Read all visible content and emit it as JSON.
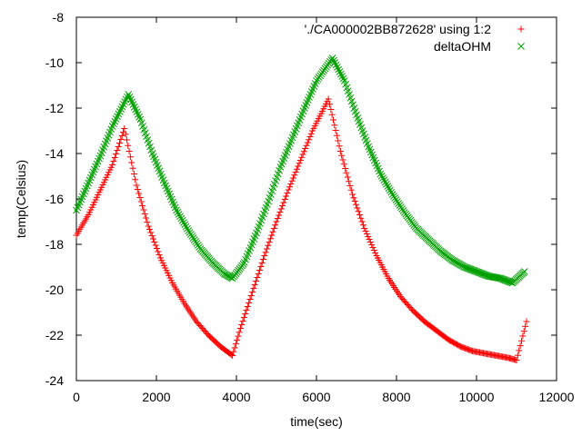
{
  "chart_data": {
    "type": "scatter",
    "xlabel": "time(sec)",
    "ylabel": "temp(Celsius)",
    "xlim": [
      0,
      12000
    ],
    "ylim": [
      -24,
      -8
    ],
    "xticks": [
      0,
      2000,
      4000,
      6000,
      8000,
      10000,
      12000
    ],
    "xtick_labels": [
      "0",
      "2000",
      "4000",
      "6000",
      "8000",
      "10000",
      "12000"
    ],
    "yticks": [
      -24,
      -22,
      -20,
      -18,
      -16,
      -14,
      -12,
      -10,
      -8
    ],
    "ytick_labels": [
      "-24",
      "-22",
      "-20",
      "-18",
      "-16",
      "-14",
      "-12",
      "-10",
      "-8"
    ],
    "grid": false,
    "legend_position": "top-right",
    "series": [
      {
        "name": "'./CA000002BB872628' using 1:2",
        "marker": "plus",
        "color": "#ff0000",
        "points": [
          [
            0,
            -17.6
          ],
          [
            300,
            -16.7
          ],
          [
            600,
            -15.6
          ],
          [
            900,
            -14.5
          ],
          [
            1200,
            -12.9
          ],
          [
            1500,
            -15.4
          ],
          [
            1800,
            -17.2
          ],
          [
            2100,
            -18.6
          ],
          [
            2400,
            -19.7
          ],
          [
            2700,
            -20.6
          ],
          [
            3000,
            -21.4
          ],
          [
            3300,
            -22.0
          ],
          [
            3600,
            -22.5
          ],
          [
            3900,
            -22.9
          ],
          [
            4100,
            -21.7
          ],
          [
            4400,
            -20.1
          ],
          [
            4700,
            -18.5
          ],
          [
            5000,
            -17.0
          ],
          [
            5300,
            -15.6
          ],
          [
            5600,
            -14.3
          ],
          [
            5900,
            -13.0
          ],
          [
            6300,
            -11.6
          ],
          [
            6600,
            -13.9
          ],
          [
            6900,
            -15.8
          ],
          [
            7200,
            -17.3
          ],
          [
            7500,
            -18.5
          ],
          [
            7800,
            -19.5
          ],
          [
            8100,
            -20.3
          ],
          [
            8400,
            -20.9
          ],
          [
            8700,
            -21.4
          ],
          [
            9000,
            -21.8
          ],
          [
            9300,
            -22.2
          ],
          [
            9600,
            -22.5
          ],
          [
            9900,
            -22.7
          ],
          [
            10200,
            -22.8
          ],
          [
            10500,
            -22.9
          ],
          [
            10800,
            -23.0
          ],
          [
            11000,
            -23.1
          ],
          [
            11250,
            -21.4
          ]
        ]
      },
      {
        "name": "deltaOHM",
        "marker": "x",
        "color": "#00a000",
        "points": [
          [
            0,
            -16.5
          ],
          [
            300,
            -15.3
          ],
          [
            600,
            -14.1
          ],
          [
            900,
            -12.8
          ],
          [
            1300,
            -11.4
          ],
          [
            1600,
            -12.5
          ],
          [
            1900,
            -14.0
          ],
          [
            2200,
            -15.3
          ],
          [
            2500,
            -16.5
          ],
          [
            2800,
            -17.4
          ],
          [
            3100,
            -18.2
          ],
          [
            3400,
            -18.8
          ],
          [
            3700,
            -19.3
          ],
          [
            3900,
            -19.5
          ],
          [
            4200,
            -18.8
          ],
          [
            4500,
            -17.5
          ],
          [
            4800,
            -16.1
          ],
          [
            5100,
            -14.6
          ],
          [
            5400,
            -13.3
          ],
          [
            5700,
            -12.0
          ],
          [
            6000,
            -10.8
          ],
          [
            6400,
            -9.8
          ],
          [
            6700,
            -10.8
          ],
          [
            7000,
            -12.3
          ],
          [
            7300,
            -13.7
          ],
          [
            7600,
            -14.9
          ],
          [
            7900,
            -15.8
          ],
          [
            8200,
            -16.6
          ],
          [
            8500,
            -17.3
          ],
          [
            8800,
            -17.8
          ],
          [
            9100,
            -18.3
          ],
          [
            9400,
            -18.7
          ],
          [
            9700,
            -19.0
          ],
          [
            10000,
            -19.2
          ],
          [
            10300,
            -19.4
          ],
          [
            10600,
            -19.5
          ],
          [
            10900,
            -19.7
          ],
          [
            11200,
            -19.2
          ]
        ]
      }
    ]
  }
}
